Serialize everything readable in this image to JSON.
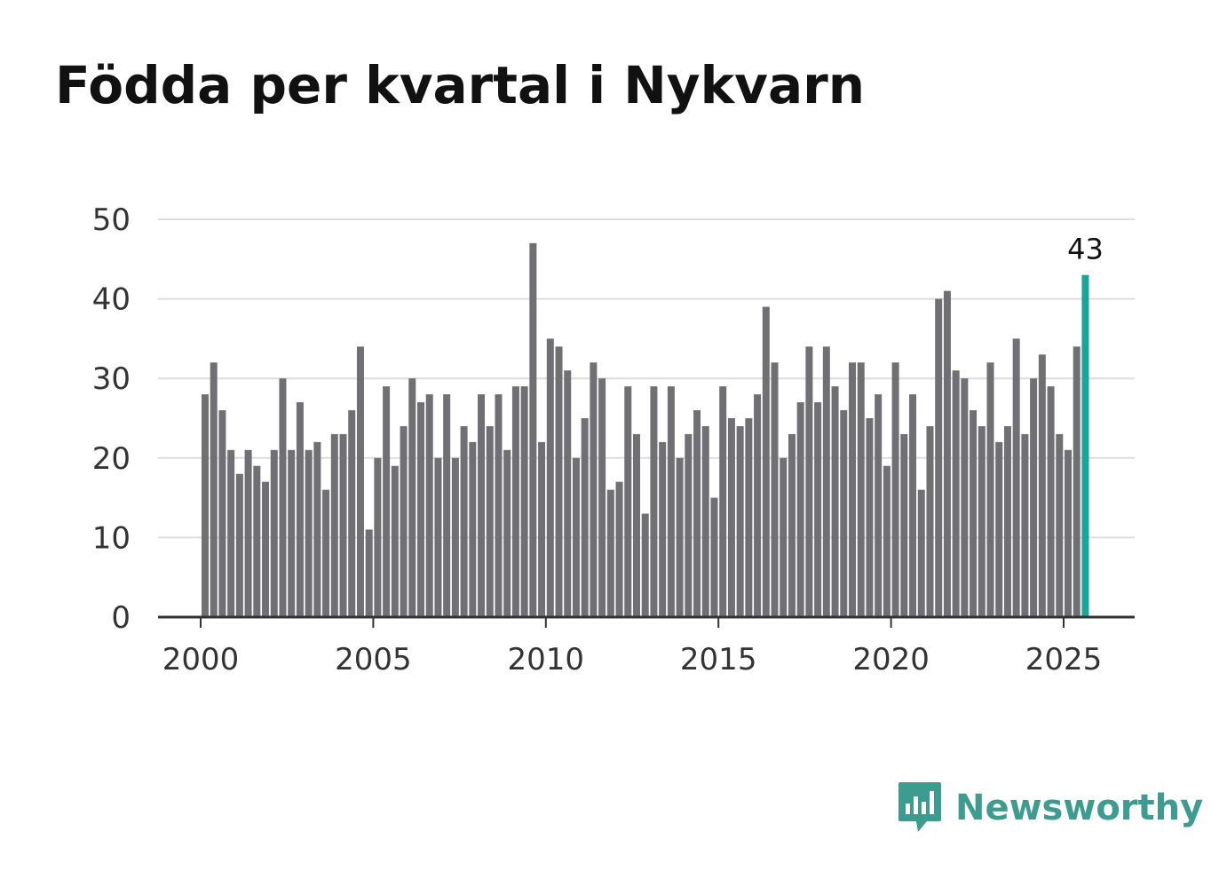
{
  "title": "Födda per kvartal i Nykvarn",
  "brand": {
    "name": "Newsworthy"
  },
  "colors": {
    "bar": "#6f6f74",
    "highlight": "#1aa596",
    "grid": "#dddddd",
    "axis": "#333333",
    "brand": "#3d9c8f"
  },
  "chart_data": {
    "type": "bar",
    "title": "Födda per kvartal i Nykvarn",
    "xlabel": "",
    "ylabel": "",
    "ylim": [
      0,
      50
    ],
    "yticks": [
      0,
      10,
      20,
      30,
      40,
      50
    ],
    "xticks": [
      2000,
      2005,
      2010,
      2015,
      2020,
      2025
    ],
    "start_year": 2000,
    "start_quarter": 1,
    "highlight_label": "43",
    "values": [
      28,
      32,
      26,
      21,
      18,
      21,
      19,
      17,
      21,
      30,
      21,
      27,
      21,
      22,
      16,
      23,
      23,
      26,
      34,
      11,
      20,
      29,
      19,
      24,
      30,
      27,
      28,
      20,
      28,
      20,
      24,
      22,
      28,
      24,
      28,
      21,
      29,
      29,
      47,
      22,
      35,
      34,
      31,
      20,
      25,
      32,
      30,
      16,
      17,
      29,
      23,
      13,
      29,
      22,
      29,
      20,
      23,
      26,
      24,
      15,
      29,
      25,
      24,
      25,
      28,
      39,
      32,
      20,
      23,
      27,
      34,
      27,
      34,
      29,
      26,
      32,
      32,
      25,
      28,
      19,
      32,
      23,
      28,
      16,
      24,
      40,
      41,
      31,
      30,
      26,
      24,
      32,
      22,
      24,
      35,
      23,
      30,
      33,
      29,
      23,
      21,
      34,
      43
    ]
  }
}
